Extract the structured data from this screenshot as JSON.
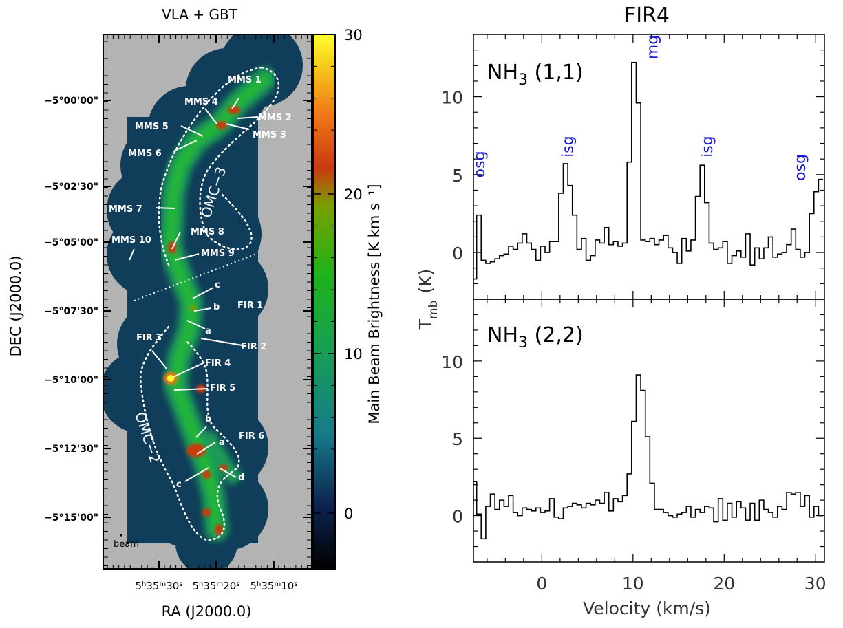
{
  "left_panel": {
    "title": "VLA + GBT",
    "xlabel": "RA (J2000.0)",
    "ylabel": "DEC (J2000.0)",
    "colorbar_label": "Main Beam Brightness  [K km s⁻¹]",
    "colorbar_ticks": [
      "30",
      "20",
      "10",
      "0"
    ],
    "ra_ticks": [
      {
        "h": "5",
        "m": "35",
        "s": "30"
      },
      {
        "h": "5",
        "m": "35",
        "s": "20"
      },
      {
        "h": "5",
        "m": "35",
        "s": "10"
      }
    ],
    "dec_ticks": [
      "−5°00'00\"",
      "−5°02'30\"",
      "−5°05'00\"",
      "−5°07'30\"",
      "−5°10'00\"",
      "−5°12'30\"",
      "−5°15'00\""
    ],
    "beam_label": "beam",
    "region_labels": {
      "omc3": "OMC−3",
      "omc2": "OMC−2"
    },
    "source_labels": {
      "mms1": "MMS 1",
      "mms2": "MMS 2",
      "mms3": "MMS 3",
      "mms4": "MMS 4",
      "mms5": "MMS 5",
      "mms6": "MMS 6",
      "mms7": "MMS 7",
      "mms8": "MMS 8",
      "mms9": "MMS 9",
      "mms10": "MMS 10",
      "fir1": "FIR 1",
      "fir2": "FIR 2",
      "fir3": "FIR 3",
      "fir4": "FIR 4",
      "fir5": "FIR 5",
      "fir6": "FIR 6",
      "c1": "c",
      "b1": "b",
      "a1": "a",
      "b2": "b",
      "a2": "a",
      "c2": "c",
      "d2": "d"
    }
  },
  "right_panel": {
    "title": "FIR4",
    "xlabel": "Velocity (km/s)",
    "ylabel": "T",
    "ylabel_sub": "mb",
    "ylabel_unit": "(K)",
    "top_label": {
      "main": "NH",
      "sub": "3",
      "rest": " (1,1)"
    },
    "bottom_label": {
      "main": "NH",
      "sub": "3",
      "rest": " (2,2)"
    },
    "annotations": {
      "osg_left": "osg",
      "isg_left": "isg",
      "mg": "mg",
      "isg_right": "isg",
      "osg_right": "osg"
    }
  },
  "chart_data": [
    {
      "type": "line",
      "title": "FIR4",
      "panel": "NH3 (1,1)",
      "xlabel": "Velocity (km/s)",
      "ylabel": "Tmb (K)",
      "xlim": [
        -7.5,
        31
      ],
      "ylim": [
        -3,
        14
      ],
      "step": true,
      "x": [
        -7.4,
        -6.9,
        -6.4,
        -5.9,
        -5.4,
        -4.9,
        -4.4,
        -3.9,
        -3.4,
        -2.9,
        -2.4,
        -1.9,
        -1.4,
        -0.9,
        -0.4,
        0.1,
        0.6,
        1.1,
        1.6,
        2.1,
        2.6,
        3.1,
        3.6,
        4.1,
        4.6,
        5.1,
        5.6,
        6.1,
        6.6,
        7.1,
        7.6,
        8.1,
        8.6,
        9.1,
        9.6,
        10.1,
        10.6,
        11.1,
        11.6,
        12.1,
        12.6,
        13.1,
        13.6,
        14.1,
        14.6,
        15.1,
        15.6,
        16.1,
        16.6,
        17.1,
        17.6,
        18.1,
        18.6,
        19.1,
        19.6,
        20.1,
        20.6,
        21.1,
        21.6,
        22.1,
        22.6,
        23.1,
        23.6,
        24.1,
        24.6,
        25.1,
        25.6,
        26.1,
        26.6,
        27.1,
        27.6,
        28.1,
        28.6,
        29.1,
        29.6,
        30.1,
        30.6
      ],
      "values": [
        -1.7,
        2.4,
        -0.5,
        -0.7,
        -0.6,
        -0.4,
        -0.2,
        -0.1,
        0.4,
        0.2,
        0.6,
        1.2,
        0.6,
        0.2,
        -0.5,
        0.4,
        0.0,
        0.7,
        0.7,
        3.8,
        5.7,
        4.3,
        2.4,
        0.2,
        0.9,
        -0.5,
        -0.2,
        0.8,
        0.6,
        1.6,
        0.5,
        0.7,
        0.4,
        0.6,
        5.8,
        12.2,
        9.6,
        0.8,
        0.7,
        0.9,
        0.5,
        0.8,
        1.1,
        0.3,
        0.0,
        -0.7,
        0.9,
        0.1,
        0.8,
        3.6,
        5.6,
        3.2,
        0.6,
        0.2,
        0.3,
        0.7,
        -0.7,
        -0.2,
        0.1,
        -0.3,
        1.2,
        -0.8,
        0.3,
        -0.4,
        0.3,
        1.0,
        -0.3,
        -0.1,
        0.0,
        0.5,
        1.5,
        0.2,
        -0.3,
        0.0,
        2.5,
        3.9,
        4.7
      ],
      "annotations": [
        {
          "text": "osg",
          "x": -6.3,
          "y": 4.8
        },
        {
          "text": "isg",
          "x": 3.4,
          "y": 6.1
        },
        {
          "text": "mg",
          "x": 12.7,
          "y": 12.4
        },
        {
          "text": "isg",
          "x": 18.7,
          "y": 6.1
        },
        {
          "text": "osg",
          "x": 28.9,
          "y": 4.6
        }
      ],
      "yticks": [
        0,
        5,
        10
      ]
    },
    {
      "type": "line",
      "panel": "NH3 (2,2)",
      "xlabel": "Velocity (km/s)",
      "ylabel": "Tmb (K)",
      "xlim": [
        -7.5,
        31
      ],
      "ylim": [
        -3,
        14
      ],
      "step": true,
      "x": [
        -7.4,
        -6.9,
        -6.4,
        -5.9,
        -5.4,
        -4.9,
        -4.4,
        -3.9,
        -3.4,
        -2.9,
        -2.4,
        -1.9,
        -1.4,
        -0.9,
        -0.4,
        0.1,
        0.6,
        1.1,
        1.6,
        2.1,
        2.6,
        3.1,
        3.6,
        4.1,
        4.6,
        5.1,
        5.6,
        6.1,
        6.6,
        7.1,
        7.6,
        8.1,
        8.6,
        9.1,
        9.6,
        10.1,
        10.6,
        11.1,
        11.6,
        12.1,
        12.6,
        13.1,
        13.6,
        14.1,
        14.6,
        15.1,
        15.6,
        16.1,
        16.6,
        17.1,
        17.6,
        18.1,
        18.6,
        19.1,
        19.6,
        20.1,
        20.6,
        21.1,
        21.6,
        22.1,
        22.6,
        23.1,
        23.6,
        24.1,
        24.6,
        25.1,
        25.6,
        26.1,
        26.6,
        27.1,
        27.6,
        28.1,
        28.6,
        29.1,
        29.6,
        30.1,
        30.6
      ],
      "values": [
        2.2,
        0.1,
        -1.5,
        0.6,
        1.4,
        0.4,
        1.0,
        0.6,
        1.3,
        0.2,
        0.0,
        0.5,
        0.4,
        0.3,
        0.5,
        0.2,
        0.3,
        1.1,
        -0.1,
        -0.2,
        0.5,
        0.6,
        0.8,
        0.7,
        0.5,
        0.8,
        0.7,
        1.0,
        0.8,
        1.5,
        0.3,
        1.1,
        0.9,
        1.3,
        2.7,
        6.1,
        9.1,
        8.1,
        5.1,
        2.1,
        0.4,
        0.4,
        0.2,
        0.0,
        -0.1,
        0.1,
        0.2,
        0.6,
        -0.1,
        0.4,
        0.2,
        0.6,
        0.5,
        -0.4,
        1.1,
        -0.3,
        0.8,
        -0.1,
        0.9,
        0.5,
        -0.3,
        0.8,
        -0.3,
        1.0,
        0.4,
        0.2,
        -0.1,
        0.6,
        0.4,
        1.5,
        1.4,
        1.5,
        0.6,
        1.3,
        -0.1,
        0.6,
        0.0
      ],
      "yticks": [
        0,
        5,
        10
      ],
      "xticks": [
        0,
        10,
        20,
        30
      ]
    }
  ]
}
